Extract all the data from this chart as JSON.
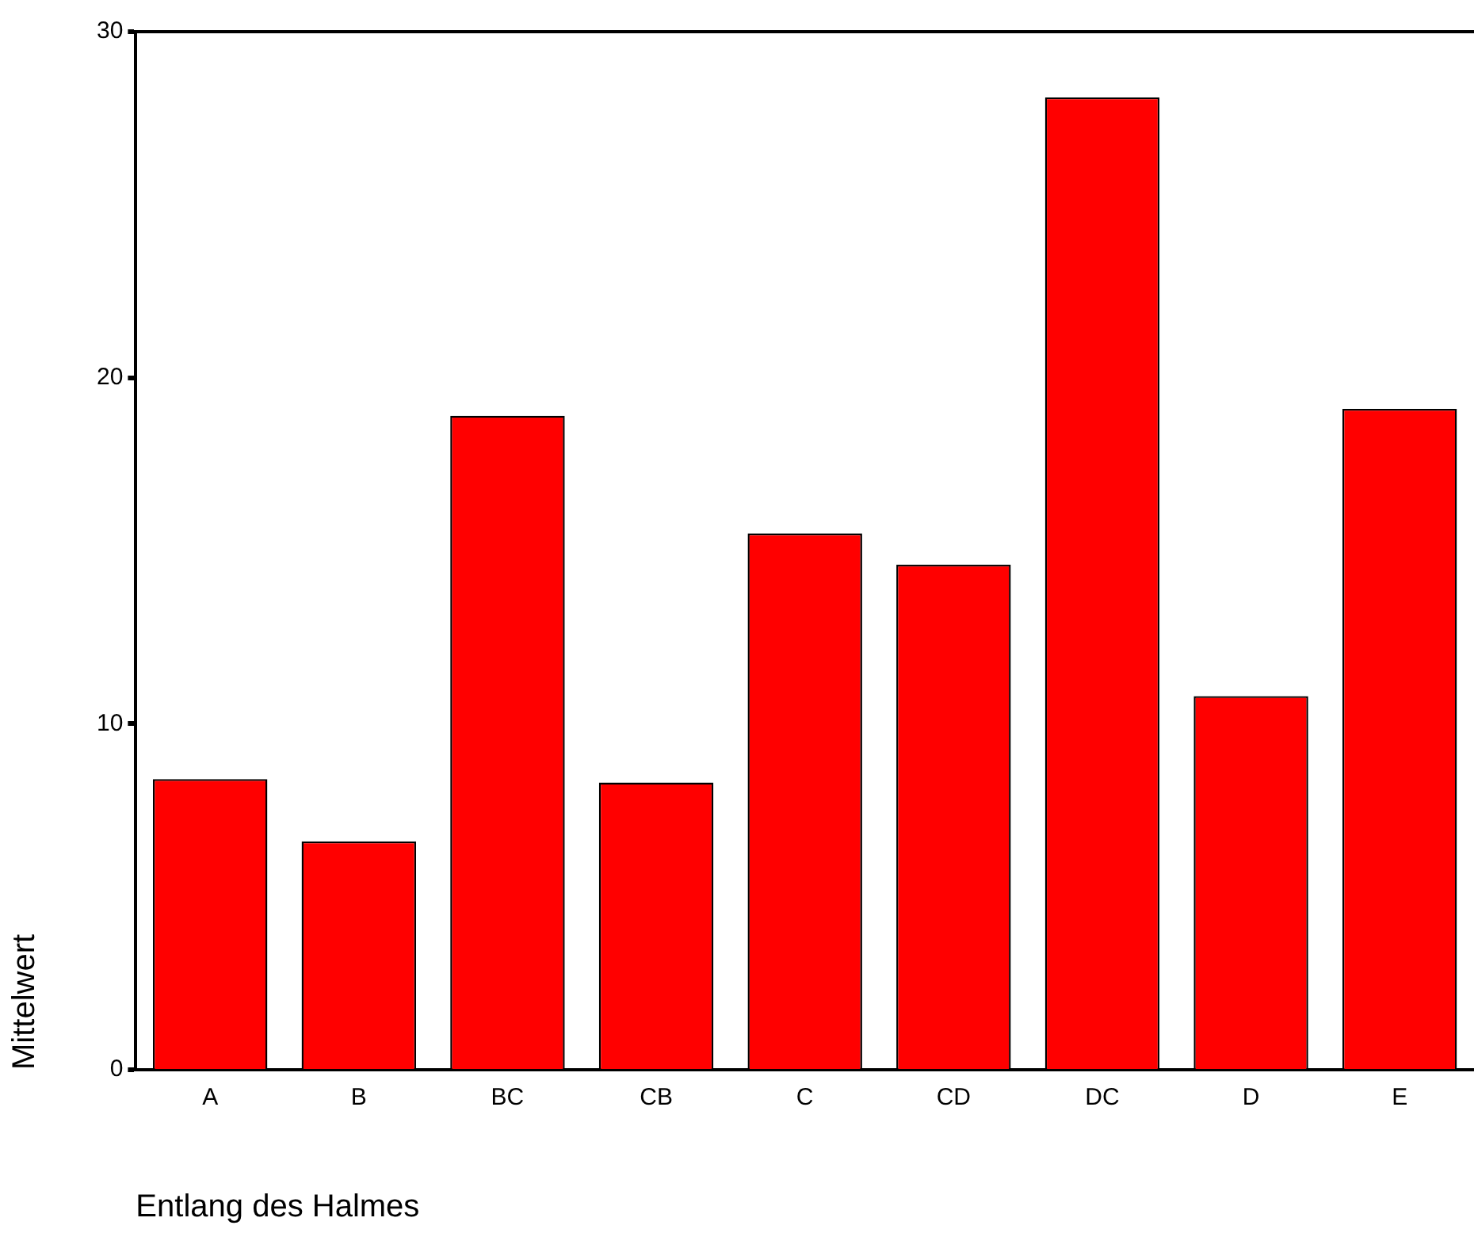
{
  "chart_data": {
    "type": "bar",
    "xlabel": "Entlang des Halmes",
    "ylabel": "Mittelwert",
    "categories": [
      "A",
      "B",
      "BC",
      "CB",
      "C",
      "CD",
      "DC",
      "D",
      "E"
    ],
    "values": [
      8.4,
      6.6,
      18.9,
      8.3,
      15.5,
      14.6,
      28.1,
      10.8,
      19.1
    ],
    "color": "#ff0000",
    "ylim": [
      0,
      30
    ],
    "yticks": [
      0,
      10,
      20,
      30
    ],
    "grid": false,
    "legend": false
  }
}
